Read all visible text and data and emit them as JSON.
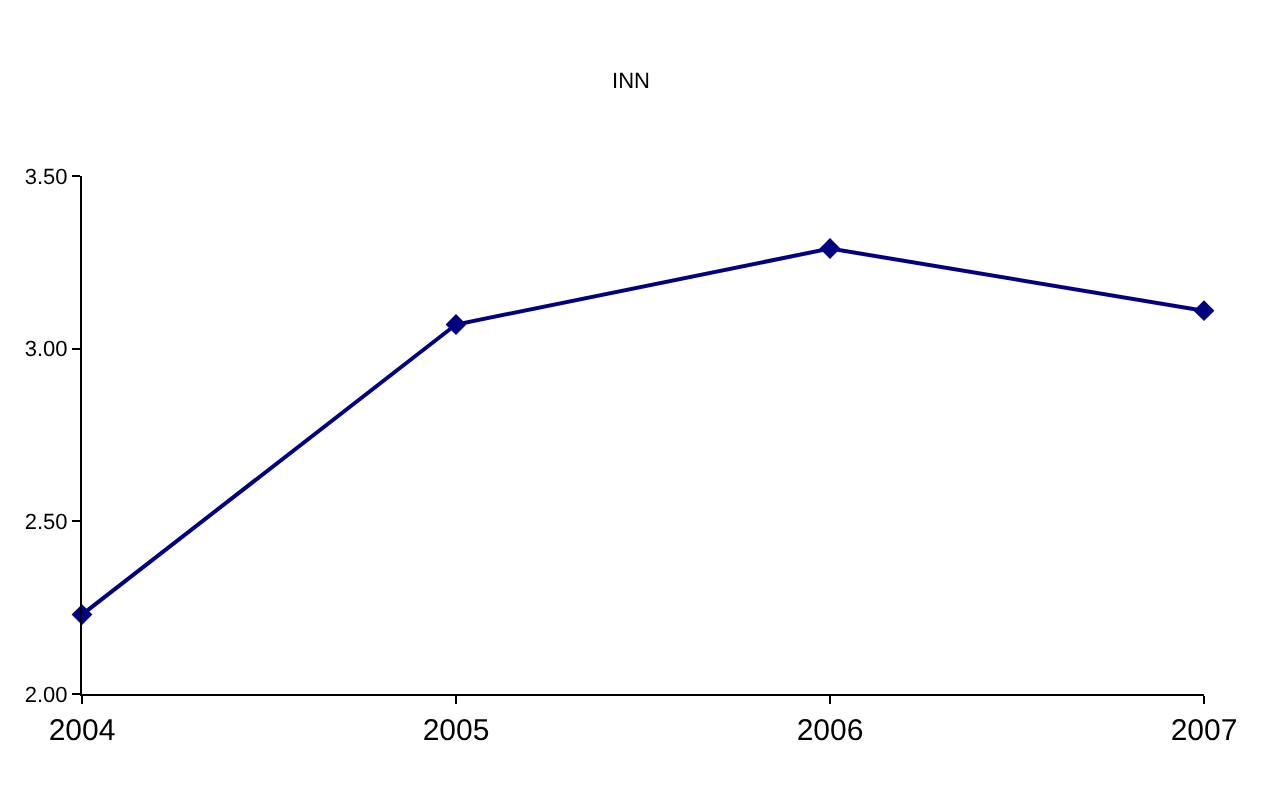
{
  "chart_data": {
    "type": "line",
    "title": "INN",
    "x": [
      2004,
      2005,
      2006,
      2007
    ],
    "series": [
      {
        "color": "#000080",
        "values": [
          2.23,
          3.07,
          3.29,
          3.11
        ]
      }
    ],
    "xlim": [
      2004,
      2007
    ],
    "xticks": [
      2004,
      2005,
      2006,
      2007
    ],
    "ylim": [
      2,
      3.5
    ],
    "yticks": [
      {
        "value": 2,
        "label": "2.00"
      },
      {
        "value": 2.5,
        "label": "2.50"
      },
      {
        "value": 3,
        "label": "3.00"
      },
      {
        "value": 3.5,
        "label": "3.50"
      }
    ],
    "marker": "diamond",
    "line_style": "solid"
  }
}
